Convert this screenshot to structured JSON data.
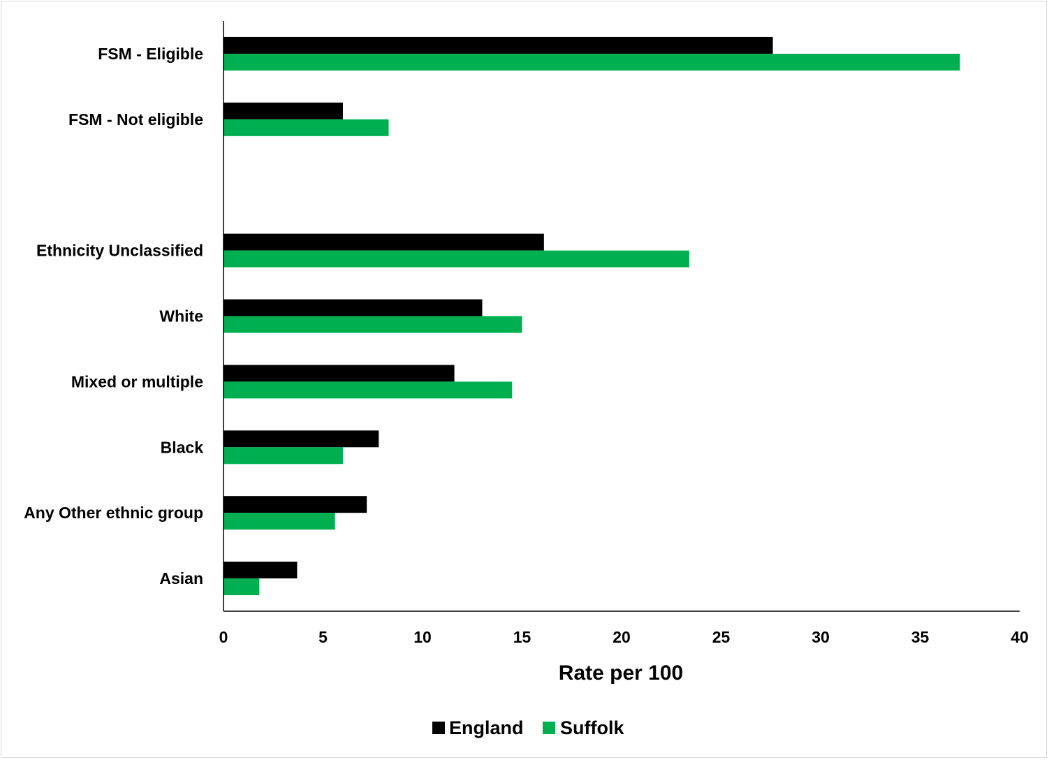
{
  "chart_data": {
    "type": "bar",
    "orientation": "horizontal",
    "categories": [
      "FSM - Eligible",
      "FSM - Not eligible",
      "",
      "Ethnicity Unclassified",
      "White",
      "Mixed or multiple",
      "Black",
      "Any Other ethnic group",
      "Asian"
    ],
    "series": [
      {
        "name": "England",
        "color": "#000000",
        "values": [
          27.6,
          6.0,
          null,
          16.1,
          13.0,
          11.6,
          7.8,
          7.2,
          3.7
        ]
      },
      {
        "name": "Suffolk",
        "color": "#00b050",
        "values": [
          37.0,
          8.3,
          null,
          23.4,
          15.0,
          14.5,
          6.0,
          5.6,
          1.8
        ]
      }
    ],
    "xlabel": "Rate per 100",
    "ylabel": "",
    "xlim": [
      0,
      40
    ],
    "xticks": [
      "0",
      "5",
      "10",
      "15",
      "20",
      "25",
      "30",
      "35",
      "40"
    ],
    "grid": false,
    "legend": "bottom"
  }
}
